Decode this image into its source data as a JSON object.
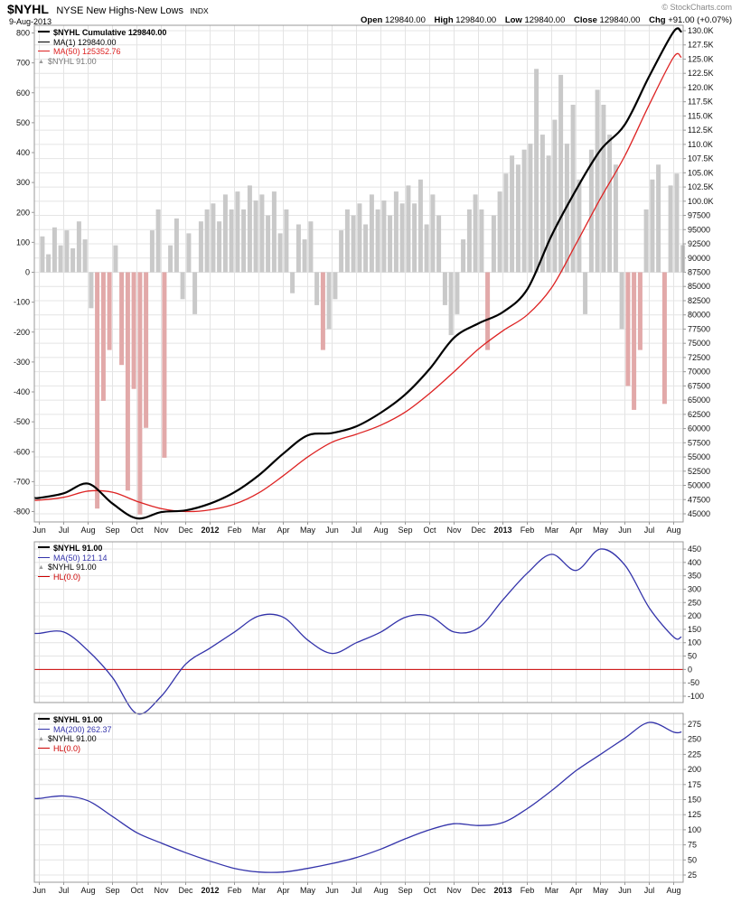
{
  "header": {
    "symbol": "$NYHL",
    "name": "NYSE New Highs-New Lows",
    "exchange": "INDX",
    "date": "9-Aug-2013",
    "credit": "© StockCharts.com",
    "quote": {
      "open_label": "Open",
      "open": "129840.00",
      "high_label": "High",
      "high": "129840.00",
      "low_label": "Low",
      "low": "129840.00",
      "close_label": "Close",
      "close": "129840.00",
      "chg_label": "Chg",
      "chg": "+91.00 (+0.07%)"
    }
  },
  "colors": {
    "grid": "#E4E4E4",
    "frame": "#999999",
    "axis_text": "#111111",
    "hist_pos": "#C9C9C9",
    "hist_neg": "#E2A9A9",
    "black_line": "#000000",
    "red_line": "#DD2222",
    "blue_line": "#3333AA",
    "hl_line": "#CC0000",
    "credit_gray": "#888888"
  },
  "x_axis": {
    "labels": [
      "Jun",
      "Jul",
      "Aug",
      "Sep",
      "Oct",
      "Nov",
      "Dec",
      "2012",
      "Feb",
      "Mar",
      "Apr",
      "May",
      "Jun",
      "Jul",
      "Aug",
      "Sep",
      "Oct",
      "Nov",
      "Dec",
      "2013",
      "Feb",
      "Mar",
      "Apr",
      "May",
      "Jun",
      "Jul",
      "Aug"
    ],
    "bold": [
      "2012",
      "2013"
    ]
  },
  "chart_data": [
    {
      "type": "line+histogram",
      "panel": "main",
      "title": "$NYHL Cumulative",
      "right_axis": {
        "min": 45000,
        "max": 130000,
        "step": 2500,
        "format": "kilo"
      },
      "left_axis": {
        "min": -800,
        "max": 800,
        "step": 100
      },
      "series": [
        {
          "name": "$NYHL Cumulative / MA(1)",
          "color": "#000000",
          "width": 2.2,
          "values": [
            47800,
            48600,
            50300,
            46800,
            44200,
            45300,
            45600,
            46800,
            48800,
            51800,
            55600,
            58800,
            59200,
            60400,
            62800,
            66000,
            70500,
            76000,
            78500,
            80500,
            84500,
            94000,
            102000,
            109000,
            113500,
            122000,
            129840
          ]
        },
        {
          "name": "MA(50)",
          "color": "#DD2222",
          "width": 1.3,
          "values": [
            47400,
            47900,
            49000,
            48800,
            47200,
            45900,
            45400,
            45700,
            46700,
            48700,
            51700,
            55000,
            57600,
            59000,
            60600,
            62900,
            66200,
            70000,
            74000,
            77200,
            80000,
            84800,
            92500,
            100500,
            108000,
            117000,
            125353
          ]
        }
      ],
      "histogram": {
        "name": "$NYHL daily",
        "points_per_month": 4,
        "neg_threshold": -250,
        "values": [
          120,
          60,
          150,
          90,
          140,
          80,
          170,
          110,
          -120,
          -790,
          -430,
          -260,
          90,
          -310,
          -730,
          -390,
          -810,
          -520,
          140,
          210,
          -620,
          90,
          180,
          -90,
          130,
          -140,
          170,
          210,
          230,
          170,
          260,
          210,
          270,
          210,
          290,
          240,
          260,
          190,
          270,
          130,
          210,
          -70,
          160,
          110,
          170,
          -110,
          -260,
          -190,
          -90,
          140,
          210,
          190,
          230,
          160,
          260,
          210,
          240,
          190,
          270,
          230,
          290,
          230,
          310,
          160,
          260,
          190,
          -110,
          -210,
          -140,
          110,
          210,
          260,
          210,
          -260,
          190,
          270,
          330,
          390,
          360,
          410,
          430,
          680,
          460,
          390,
          510,
          660,
          430,
          560,
          310,
          -140,
          410,
          610,
          560,
          460,
          360,
          -190,
          -380,
          -460,
          -260,
          210,
          310,
          360,
          -440,
          290,
          330,
          91
        ]
      },
      "legend": [
        {
          "glyph": "line",
          "color": "#000000",
          "bold": true,
          "text": "$NYHL Cumulative 129840.00"
        },
        {
          "glyph": "line",
          "color": "#000000",
          "bold": false,
          "text": "MA(1) 129840.00"
        },
        {
          "glyph": "line",
          "color": "#DD2222",
          "bold": false,
          "text": "MA(50) 125352.76",
          "text_color": "#DD2222"
        },
        {
          "glyph": "tri",
          "color": "#999999",
          "bold": false,
          "text": "$NYHL 91.00",
          "text_color": "#777777"
        }
      ]
    },
    {
      "type": "line",
      "panel": "middle",
      "right_axis": {
        "min": -100,
        "max": 450,
        "step": 50
      },
      "series": [
        {
          "name": "MA(50)",
          "color": "#3333AA",
          "width": 1.3,
          "values": [
            135,
            140,
            70,
            -30,
            -165,
            -100,
            20,
            80,
            140,
            200,
            195,
            110,
            60,
            100,
            140,
            195,
            200,
            140,
            155,
            260,
            360,
            430,
            370,
            450,
            390,
            230,
            121
          ]
        }
      ],
      "hline": {
        "value": 0,
        "color": "#CC0000"
      },
      "legend": [
        {
          "glyph": "line",
          "color": "#000000",
          "bold": true,
          "text": "$NYHL 91.00"
        },
        {
          "glyph": "line",
          "color": "#3333AA",
          "bold": false,
          "text": "MA(50) 121.14",
          "text_color": "#3333AA"
        },
        {
          "glyph": "tri",
          "color": "#999999",
          "bold": false,
          "text": "$NYHL 91.00"
        },
        {
          "glyph": "line",
          "color": "#CC0000",
          "bold": false,
          "text": "HL(0.0)",
          "text_color": "#CC0000"
        }
      ]
    },
    {
      "type": "line",
      "panel": "bottom",
      "right_axis": {
        "min": 25,
        "max": 275,
        "step": 25
      },
      "series": [
        {
          "name": "MA(200)",
          "color": "#3333AA",
          "width": 1.3,
          "values": [
            152,
            156,
            148,
            122,
            95,
            78,
            62,
            48,
            36,
            30,
            30,
            36,
            44,
            54,
            68,
            85,
            100,
            110,
            107,
            112,
            135,
            165,
            198,
            225,
            252,
            278,
            262
          ]
        }
      ],
      "hline": {
        "value": 0,
        "color": "#CC0000"
      },
      "legend": [
        {
          "glyph": "line",
          "color": "#000000",
          "bold": true,
          "text": "$NYHL 91.00"
        },
        {
          "glyph": "line",
          "color": "#3333AA",
          "bold": false,
          "text": "MA(200) 262.37",
          "text_color": "#3333AA"
        },
        {
          "glyph": "tri",
          "color": "#999999",
          "bold": false,
          "text": "$NYHL 91.00"
        },
        {
          "glyph": "line",
          "color": "#CC0000",
          "bold": false,
          "text": "HL(0.0)",
          "text_color": "#CC0000"
        }
      ]
    }
  ]
}
